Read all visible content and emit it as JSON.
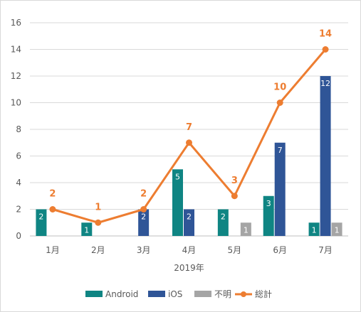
{
  "chart_data": {
    "type": "bar",
    "categories": [
      "1月",
      "2月",
      "3月",
      "4月",
      "5月",
      "6月",
      "7月"
    ],
    "xlabel": "2019年",
    "ylabel": "",
    "ylim": [
      0,
      16
    ],
    "yticks": [
      0,
      2,
      4,
      6,
      8,
      10,
      12,
      14,
      16
    ],
    "grid": true,
    "legend_position": "bottom",
    "series": [
      {
        "name": "Android",
        "type": "bar",
        "color": "#0f8583",
        "values": [
          2,
          1,
          0,
          5,
          2,
          3,
          1
        ]
      },
      {
        "name": "iOS",
        "type": "bar",
        "color": "#2f5597",
        "values": [
          0,
          0,
          2,
          2,
          0,
          7,
          12
        ]
      },
      {
        "name": "不明",
        "type": "bar",
        "color": "#a5a5a5",
        "values": [
          0,
          0,
          0,
          0,
          1,
          0,
          1
        ]
      },
      {
        "name": "総計",
        "type": "line",
        "color": "#ed7d31",
        "values": [
          2,
          1,
          2,
          7,
          3,
          10,
          14
        ]
      }
    ]
  }
}
